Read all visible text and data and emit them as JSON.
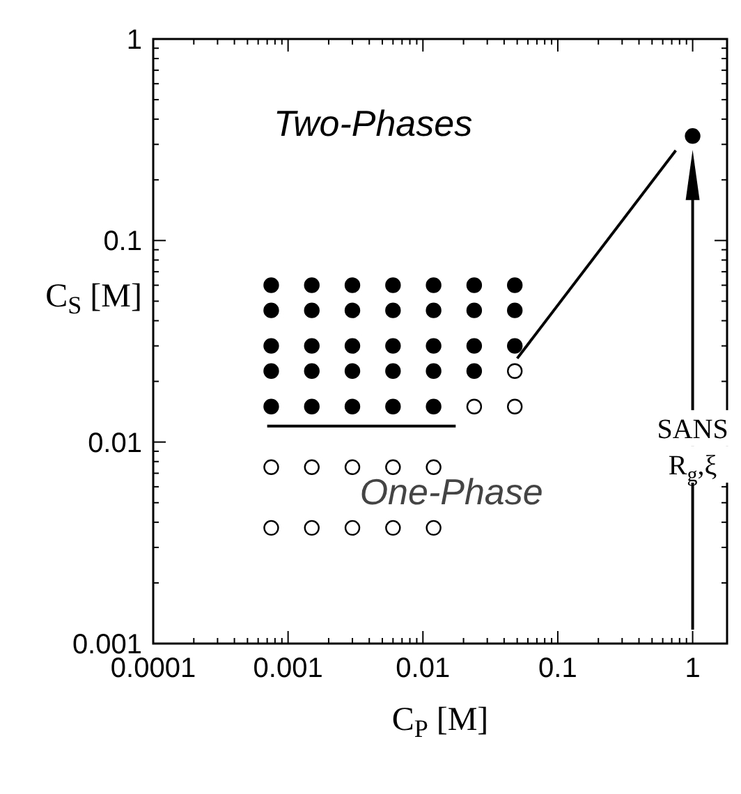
{
  "chart_data": {
    "type": "scatter",
    "xlabel": "C$_{P}$ [M]",
    "ylabel": "C$_{S}$ [M]",
    "log": "xy",
    "grid": false,
    "xlim": [
      0.0001,
      1.8
    ],
    "ylim": [
      0.001,
      1
    ],
    "xticks": [
      0.0001,
      0.001,
      0.01,
      0.1,
      1
    ],
    "yticks": [
      0.001,
      0.01,
      0.1,
      1
    ],
    "series": [
      {
        "marker": "circle",
        "color": "#000000",
        "x": [
          0.00075,
          0.00075,
          0.00075,
          0.00075,
          0.00075,
          0.0015,
          0.0015,
          0.0015,
          0.0015,
          0.0015,
          0.003,
          0.003,
          0.003,
          0.003,
          0.003,
          0.006,
          0.006,
          0.006,
          0.006,
          0.006,
          0.012,
          0.012,
          0.012,
          0.012,
          0.012,
          0.024,
          0.024,
          0.024,
          0.024,
          0.048,
          0.048,
          0.048,
          1
        ],
        "values": [
          0.015,
          0.0225,
          0.03,
          0.045,
          0.06,
          0.015,
          0.0225,
          0.03,
          0.045,
          0.06,
          0.015,
          0.0225,
          0.03,
          0.045,
          0.06,
          0.015,
          0.0225,
          0.03,
          0.045,
          0.06,
          0.015,
          0.0225,
          0.03,
          0.045,
          0.06,
          0.0225,
          0.03,
          0.045,
          0.06,
          0.03,
          0.045,
          0.06,
          0.33
        ]
      },
      {
        "marker": "circle",
        "color": "#ffffff",
        "x": [
          0.00075,
          0.0015,
          0.003,
          0.006,
          0.012,
          0.00075,
          0.0015,
          0.003,
          0.006,
          0.012,
          0.024,
          0.048,
          0.048
        ],
        "values": [
          0.0075,
          0.0075,
          0.0075,
          0.0075,
          0.0075,
          0.00375,
          0.00375,
          0.00375,
          0.00375,
          0.00375,
          0.015,
          0.015,
          0.0225
        ]
      },
      {
        "type": "line",
        "color": "#000000",
        "x": [
          0.0007,
          0.0175
        ],
        "values": [
          0.012,
          0.012
        ]
      },
      {
        "type": "line",
        "color": "#000000",
        "x": [
          0.05,
          0.75
        ],
        "values": [
          0.026,
          0.28
        ]
      }
    ],
    "annotations": [
      "Two-Phases",
      "One-Phase",
      "SANS",
      "R$_{g}$,ξ"
    ]
  }
}
